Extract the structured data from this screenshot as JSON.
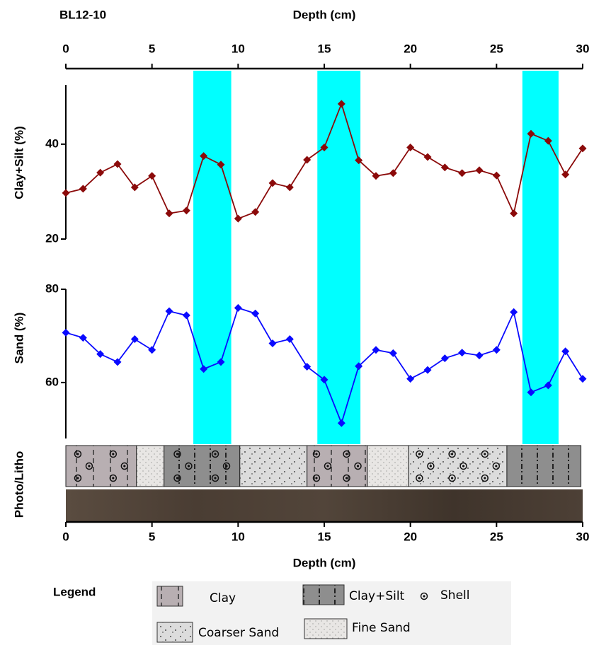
{
  "header": {
    "title": "BL12-10"
  },
  "chart_data": [
    {
      "type": "line",
      "x_label": "Depth (cm)",
      "y_label": "Clay+Silt (%)",
      "color": "#8b0a0a",
      "xlim": [
        0,
        30
      ],
      "xticks": [
        0,
        5,
        10,
        15,
        20,
        25,
        30
      ],
      "ylim": [
        20,
        52.5
      ],
      "yticks": [
        20,
        40
      ],
      "x": [
        0,
        1,
        2,
        3,
        4,
        5,
        6,
        7,
        8,
        9,
        10,
        11,
        12,
        13,
        14,
        15,
        16,
        17,
        18,
        19,
        20,
        21,
        22,
        23,
        24,
        25,
        26,
        27,
        28,
        29,
        30
      ],
      "values": [
        29.7,
        30.6,
        34.0,
        35.8,
        30.9,
        33.3,
        25.4,
        26.0,
        37.5,
        35.7,
        24.3,
        25.7,
        31.8,
        30.9,
        36.7,
        39.3,
        48.5,
        36.6,
        33.3,
        33.9,
        39.3,
        37.3,
        35.1,
        33.9,
        34.5,
        33.4,
        25.4,
        42.2,
        40.7,
        33.6,
        39.1
      ]
    },
    {
      "type": "line",
      "x_label": "Depth (cm)",
      "y_label": "Sand (%)",
      "color": "#0a0aff",
      "xlim": [
        0,
        30
      ],
      "xticks": [
        0,
        5,
        10,
        15,
        20,
        25,
        30
      ],
      "ylim": [
        48,
        80
      ],
      "yticks": [
        60,
        80
      ],
      "x": [
        0,
        1,
        2,
        3,
        4,
        5,
        6,
        7,
        8,
        9,
        10,
        11,
        12,
        13,
        14,
        15,
        16,
        17,
        18,
        19,
        20,
        21,
        22,
        23,
        24,
        25,
        26,
        27,
        28,
        29,
        30
      ],
      "values": [
        70.7,
        69.6,
        66.1,
        64.4,
        69.3,
        67.0,
        75.3,
        74.4,
        62.9,
        64.4,
        76.0,
        74.8,
        68.4,
        69.3,
        63.4,
        60.6,
        51.3,
        63.5,
        67.0,
        66.3,
        60.8,
        62.7,
        65.2,
        66.4,
        65.8,
        67.0,
        75.1,
        57.9,
        59.4,
        66.7,
        60.8
      ]
    }
  ],
  "highlights": {
    "color": "#00ffff",
    "ranges": [
      [
        7.4,
        9.6
      ],
      [
        14.6,
        17.1
      ],
      [
        26.5,
        28.6
      ]
    ]
  },
  "litho": {
    "label": "Photo/Litho",
    "segments": [
      {
        "from": 0,
        "to": 4.1,
        "pattern": 0,
        "shell": true
      },
      {
        "from": 4.1,
        "to": 5.7,
        "pattern": 4,
        "shell": false
      },
      {
        "from": 5.7,
        "to": 10.1,
        "pattern": 1,
        "shell": true
      },
      {
        "from": 10.1,
        "to": 14.0,
        "pattern": 3,
        "shell": false
      },
      {
        "from": 14.0,
        "to": 17.5,
        "pattern": 0,
        "shell": true
      },
      {
        "from": 17.5,
        "to": 19.9,
        "pattern": 4,
        "shell": false
      },
      {
        "from": 19.9,
        "to": 25.6,
        "pattern": 3,
        "shell": true
      },
      {
        "from": 25.6,
        "to": 29.9,
        "pattern": 1,
        "shell": false
      }
    ]
  },
  "legend": {
    "title": "Legend",
    "items": [
      "Clay",
      "Clay+Silt",
      "Shell",
      "Coarser Sand",
      "Fine Sand"
    ]
  }
}
